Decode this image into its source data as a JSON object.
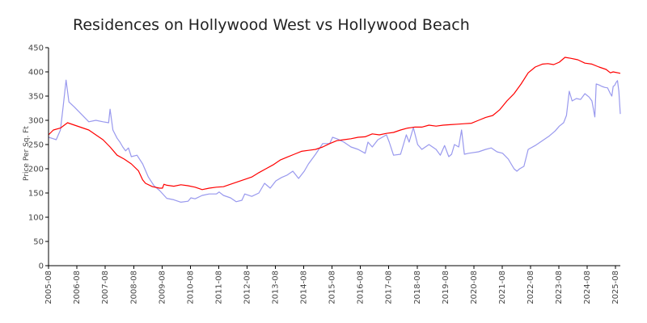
{
  "chart_data": {
    "type": "line",
    "title": "Residences on Hollywood West vs Hollywood Beach",
    "xlabel": "",
    "ylabel": "Price Per Sq. Ft",
    "ylim": [
      0,
      450
    ],
    "yticks": [
      0,
      50,
      100,
      150,
      200,
      250,
      300,
      350,
      400,
      450
    ],
    "xlim": [
      2005.58,
      2025.75
    ],
    "xticks": [
      "2005-08",
      "2006-08",
      "2007-08",
      "2008-08",
      "2009-08",
      "2010-08",
      "2011-08",
      "2012-08",
      "2013-08",
      "2014-08",
      "2015-08",
      "2016-08",
      "2017-08",
      "2018-08",
      "2019-08",
      "2020-08",
      "2021-08",
      "2022-08",
      "2023-08",
      "2024-08",
      "2025-08"
    ],
    "grid": false,
    "legend": "none",
    "series": [
      {
        "name": "Hollywood Beach",
        "color": "#ff0000",
        "points": [
          [
            2005.58,
            270
          ],
          [
            2005.75,
            280
          ],
          [
            2006.0,
            284
          ],
          [
            2006.25,
            295
          ],
          [
            2006.5,
            290
          ],
          [
            2006.75,
            285
          ],
          [
            2007.0,
            280
          ],
          [
            2007.25,
            270
          ],
          [
            2007.5,
            260
          ],
          [
            2007.75,
            245
          ],
          [
            2008.0,
            228
          ],
          [
            2008.25,
            220
          ],
          [
            2008.5,
            210
          ],
          [
            2008.75,
            196
          ],
          [
            2008.9,
            177
          ],
          [
            2009.0,
            170
          ],
          [
            2009.25,
            163
          ],
          [
            2009.5,
            160
          ],
          [
            2009.6,
            160
          ],
          [
            2009.65,
            168
          ],
          [
            2009.75,
            166
          ],
          [
            2010.0,
            164
          ],
          [
            2010.25,
            167
          ],
          [
            2010.5,
            165
          ],
          [
            2010.75,
            162
          ],
          [
            2011.0,
            157
          ],
          [
            2011.25,
            160
          ],
          [
            2011.5,
            162
          ],
          [
            2011.75,
            163
          ],
          [
            2012.0,
            168
          ],
          [
            2012.25,
            173
          ],
          [
            2012.5,
            178
          ],
          [
            2012.75,
            183
          ],
          [
            2013.0,
            192
          ],
          [
            2013.25,
            200
          ],
          [
            2013.5,
            208
          ],
          [
            2013.75,
            218
          ],
          [
            2014.0,
            224
          ],
          [
            2014.25,
            230
          ],
          [
            2014.5,
            236
          ],
          [
            2014.75,
            238
          ],
          [
            2015.0,
            240
          ],
          [
            2015.25,
            245
          ],
          [
            2015.5,
            252
          ],
          [
            2015.75,
            258
          ],
          [
            2016.0,
            260
          ],
          [
            2016.25,
            262
          ],
          [
            2016.5,
            265
          ],
          [
            2016.75,
            266
          ],
          [
            2017.0,
            272
          ],
          [
            2017.25,
            270
          ],
          [
            2017.5,
            273
          ],
          [
            2017.75,
            275
          ],
          [
            2018.0,
            280
          ],
          [
            2018.25,
            284
          ],
          [
            2018.5,
            286
          ],
          [
            2018.75,
            286
          ],
          [
            2019.0,
            290
          ],
          [
            2019.25,
            288
          ],
          [
            2019.5,
            290
          ],
          [
            2019.75,
            291
          ],
          [
            2020.0,
            292
          ],
          [
            2020.25,
            293
          ],
          [
            2020.5,
            294
          ],
          [
            2020.75,
            300
          ],
          [
            2021.0,
            306
          ],
          [
            2021.25,
            310
          ],
          [
            2021.5,
            322
          ],
          [
            2021.75,
            340
          ],
          [
            2022.0,
            355
          ],
          [
            2022.25,
            375
          ],
          [
            2022.5,
            398
          ],
          [
            2022.75,
            410
          ],
          [
            2023.0,
            416
          ],
          [
            2023.2,
            417
          ],
          [
            2023.4,
            415
          ],
          [
            2023.6,
            420
          ],
          [
            2023.8,
            430
          ],
          [
            2024.0,
            428
          ],
          [
            2024.25,
            425
          ],
          [
            2024.5,
            418
          ],
          [
            2024.75,
            416
          ],
          [
            2025.0,
            410
          ],
          [
            2025.25,
            405
          ],
          [
            2025.4,
            398
          ],
          [
            2025.5,
            400
          ],
          [
            2025.75,
            397
          ]
        ]
      },
      {
        "name": "Hollywood West",
        "color": "#9999ee",
        "points": [
          [
            2005.58,
            265
          ],
          [
            2005.75,
            262
          ],
          [
            2005.85,
            260
          ],
          [
            2006.0,
            280
          ],
          [
            2006.1,
            330
          ],
          [
            2006.2,
            383
          ],
          [
            2006.3,
            338
          ],
          [
            2006.5,
            327
          ],
          [
            2006.75,
            312
          ],
          [
            2007.0,
            297
          ],
          [
            2007.25,
            300
          ],
          [
            2007.5,
            297
          ],
          [
            2007.7,
            295
          ],
          [
            2007.75,
            323
          ],
          [
            2007.85,
            280
          ],
          [
            2008.0,
            263
          ],
          [
            2008.1,
            255
          ],
          [
            2008.2,
            245
          ],
          [
            2008.3,
            237
          ],
          [
            2008.4,
            243
          ],
          [
            2008.5,
            225
          ],
          [
            2008.7,
            228
          ],
          [
            2008.9,
            210
          ],
          [
            2009.1,
            183
          ],
          [
            2009.3,
            165
          ],
          [
            2009.5,
            155
          ],
          [
            2009.75,
            139
          ],
          [
            2010.0,
            136
          ],
          [
            2010.25,
            131
          ],
          [
            2010.5,
            133
          ],
          [
            2010.6,
            140
          ],
          [
            2010.75,
            138
          ],
          [
            2011.0,
            145
          ],
          [
            2011.25,
            148
          ],
          [
            2011.5,
            148
          ],
          [
            2011.6,
            152
          ],
          [
            2011.75,
            145
          ],
          [
            2012.0,
            140
          ],
          [
            2012.2,
            132
          ],
          [
            2012.4,
            135
          ],
          [
            2012.5,
            148
          ],
          [
            2012.75,
            143
          ],
          [
            2013.0,
            150
          ],
          [
            2013.2,
            170
          ],
          [
            2013.4,
            160
          ],
          [
            2013.6,
            175
          ],
          [
            2013.8,
            182
          ],
          [
            2014.0,
            187
          ],
          [
            2014.2,
            195
          ],
          [
            2014.4,
            180
          ],
          [
            2014.6,
            195
          ],
          [
            2014.75,
            210
          ],
          [
            2015.0,
            230
          ],
          [
            2015.25,
            252
          ],
          [
            2015.5,
            252
          ],
          [
            2015.6,
            265
          ],
          [
            2015.75,
            262
          ],
          [
            2016.0,
            255
          ],
          [
            2016.25,
            245
          ],
          [
            2016.5,
            240
          ],
          [
            2016.75,
            232
          ],
          [
            2016.85,
            255
          ],
          [
            2017.0,
            245
          ],
          [
            2017.2,
            260
          ],
          [
            2017.35,
            265
          ],
          [
            2017.5,
            270
          ],
          [
            2017.6,
            255
          ],
          [
            2017.75,
            228
          ],
          [
            2018.0,
            230
          ],
          [
            2018.2,
            270
          ],
          [
            2018.3,
            255
          ],
          [
            2018.45,
            285
          ],
          [
            2018.6,
            250
          ],
          [
            2018.75,
            240
          ],
          [
            2019.0,
            250
          ],
          [
            2019.25,
            240
          ],
          [
            2019.4,
            228
          ],
          [
            2019.55,
            248
          ],
          [
            2019.7,
            225
          ],
          [
            2019.8,
            230
          ],
          [
            2019.9,
            250
          ],
          [
            2020.05,
            245
          ],
          [
            2020.15,
            280
          ],
          [
            2020.25,
            230
          ],
          [
            2020.4,
            232
          ],
          [
            2020.75,
            235
          ],
          [
            2021.0,
            240
          ],
          [
            2021.2,
            243
          ],
          [
            2021.4,
            235
          ],
          [
            2021.6,
            232
          ],
          [
            2021.8,
            220
          ],
          [
            2021.9,
            210
          ],
          [
            2022.0,
            200
          ],
          [
            2022.1,
            195
          ],
          [
            2022.2,
            200
          ],
          [
            2022.35,
            205
          ],
          [
            2022.5,
            240
          ],
          [
            2022.75,
            248
          ],
          [
            2023.0,
            258
          ],
          [
            2023.25,
            268
          ],
          [
            2023.45,
            278
          ],
          [
            2023.6,
            288
          ],
          [
            2023.75,
            295
          ],
          [
            2023.85,
            310
          ],
          [
            2023.95,
            360
          ],
          [
            2024.05,
            340
          ],
          [
            2024.2,
            345
          ],
          [
            2024.35,
            343
          ],
          [
            2024.5,
            355
          ],
          [
            2024.65,
            348
          ],
          [
            2024.75,
            340
          ],
          [
            2024.85,
            307
          ],
          [
            2024.9,
            375
          ],
          [
            2025.0,
            373
          ],
          [
            2025.1,
            370
          ],
          [
            2025.2,
            368
          ],
          [
            2025.3,
            367
          ],
          [
            2025.4,
            355
          ],
          [
            2025.45,
            350
          ],
          [
            2025.5,
            370
          ],
          [
            2025.55,
            372
          ],
          [
            2025.6,
            378
          ],
          [
            2025.65,
            382
          ],
          [
            2025.7,
            360
          ],
          [
            2025.75,
            313
          ]
        ]
      }
    ]
  }
}
